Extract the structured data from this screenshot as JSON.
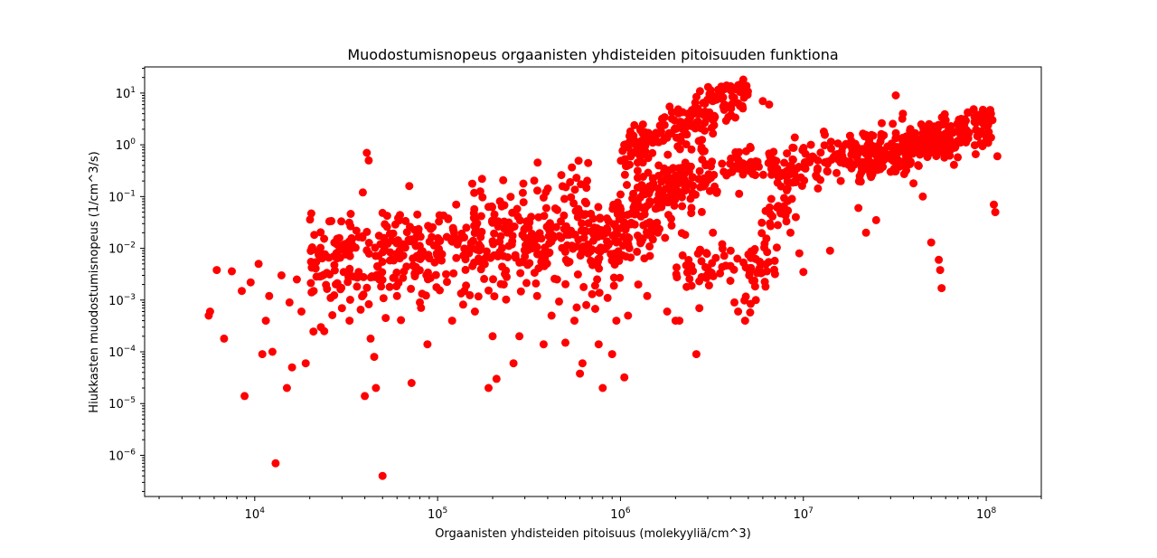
{
  "chart_data": {
    "type": "scatter",
    "title": "Muodostumisnopeus orgaanisten yhdisteiden pitoisuuden funktiona",
    "xlabel": "Orgaanisten yhdisteiden pitoisuus (molekyyliä/cm^3)",
    "ylabel": "Hiukkasten muodostumisnopeus (1/cm^3/s)",
    "xscale": "log",
    "yscale": "log",
    "xlim": [
      2500,
      200000000
    ],
    "ylim": [
      1.6e-07,
      32
    ],
    "xticks": [
      {
        "value": 10000,
        "base": "10",
        "exp": "4"
      },
      {
        "value": 100000,
        "base": "10",
        "exp": "5"
      },
      {
        "value": 1000000,
        "base": "10",
        "exp": "6"
      },
      {
        "value": 10000000,
        "base": "10",
        "exp": "7"
      },
      {
        "value": 100000000,
        "base": "10",
        "exp": "8"
      }
    ],
    "yticks": [
      {
        "value": 1e-06,
        "base": "10",
        "exp": "−6"
      },
      {
        "value": 1e-05,
        "base": "10",
        "exp": "−5"
      },
      {
        "value": 0.0001,
        "base": "10",
        "exp": "−4"
      },
      {
        "value": 0.001,
        "base": "10",
        "exp": "−3"
      },
      {
        "value": 0.01,
        "base": "10",
        "exp": "−2"
      },
      {
        "value": 0.1,
        "base": "10",
        "exp": "−1"
      },
      {
        "value": 1,
        "base": "10",
        "exp": "0"
      },
      {
        "value": 10,
        "base": "10",
        "exp": "1"
      }
    ],
    "marker_color": "#ff0000",
    "grid": false,
    "legend": "none",
    "points": [
      [
        5600,
        0.0005
      ],
      [
        5700,
        0.0006
      ],
      [
        6200,
        0.0038
      ],
      [
        6800,
        0.00018
      ],
      [
        7500,
        0.0036
      ],
      [
        8500,
        0.0015
      ],
      [
        8800,
        1.4e-05
      ],
      [
        9500,
        0.0022
      ],
      [
        10500,
        0.005
      ],
      [
        11000,
        9e-05
      ],
      [
        11500,
        0.0004
      ],
      [
        12000,
        0.0012
      ],
      [
        12500,
        0.0001
      ],
      [
        13000,
        7e-07
      ],
      [
        14000,
        0.003
      ],
      [
        15000,
        2e-05
      ],
      [
        15500,
        0.0009
      ],
      [
        16000,
        5e-05
      ],
      [
        17000,
        0.0025
      ],
      [
        18000,
        0.0006
      ],
      [
        19000,
        6e-05
      ],
      [
        21000,
        0.0015
      ],
      [
        23000,
        0.0003
      ],
      [
        24000,
        0.00025
      ],
      [
        26000,
        0.0011
      ],
      [
        30000,
        0.0007
      ],
      [
        33000,
        0.0004
      ],
      [
        37000,
        0.0035
      ],
      [
        39000,
        0.12
      ],
      [
        40000,
        1.4e-05
      ],
      [
        41000,
        0.7
      ],
      [
        42000,
        0.5
      ],
      [
        43000,
        0.00018
      ],
      [
        45000,
        8e-05
      ],
      [
        46000,
        2e-05
      ],
      [
        48000,
        0.0025
      ],
      [
        50000,
        4e-07
      ],
      [
        52000,
        0.00045
      ],
      [
        60000,
        0.0012
      ],
      [
        70000,
        0.16
      ],
      [
        72000,
        2.5e-05
      ],
      [
        80000,
        0.0009
      ],
      [
        88000,
        0.00014
      ],
      [
        120000,
        0.0004
      ],
      [
        140000,
        0.0015
      ],
      [
        160000,
        0.0006
      ],
      [
        175000,
        0.22
      ],
      [
        190000,
        2e-05
      ],
      [
        200000,
        0.0002
      ],
      [
        210000,
        3e-05
      ],
      [
        230000,
        0.002
      ],
      [
        260000,
        6e-05
      ],
      [
        280000,
        0.0002
      ],
      [
        300000,
        0.007
      ],
      [
        350000,
        0.0012
      ],
      [
        380000,
        0.00014
      ],
      [
        420000,
        0.0005
      ],
      [
        450000,
        0.0025
      ],
      [
        500000,
        0.00015
      ],
      [
        560000,
        0.0004
      ],
      [
        600000,
        3.8e-05
      ],
      [
        620000,
        6e-05
      ],
      [
        650000,
        0.0008
      ],
      [
        700000,
        0.0013
      ],
      [
        760000,
        0.00014
      ],
      [
        800000,
        2e-05
      ],
      [
        850000,
        0.0011
      ],
      [
        900000,
        9e-05
      ],
      [
        950000,
        0.0004
      ],
      [
        1000000,
        0.11
      ],
      [
        1050000,
        3.2e-05
      ],
      [
        1100000,
        0.0005
      ],
      [
        1250000,
        0.002
      ],
      [
        1400000,
        0.0012
      ],
      [
        1600000,
        0.02
      ],
      [
        1800000,
        0.0006
      ],
      [
        2000000,
        0.0004
      ],
      [
        2100000,
        0.0004
      ],
      [
        2300000,
        0.0018
      ],
      [
        2600000,
        9e-05
      ],
      [
        2700000,
        0.0007
      ],
      [
        3000000,
        0.004
      ],
      [
        3200000,
        0.02
      ],
      [
        3600000,
        0.012
      ],
      [
        3800000,
        14
      ],
      [
        4000000,
        0.009
      ],
      [
        4200000,
        0.0009
      ],
      [
        4400000,
        0.0006
      ],
      [
        4800000,
        0.0004
      ],
      [
        5500000,
        0.001
      ],
      [
        6000000,
        7
      ],
      [
        6500000,
        6
      ],
      [
        7500000,
        0.05
      ],
      [
        8000000,
        0.25
      ],
      [
        8500000,
        0.02
      ],
      [
        9500000,
        0.008
      ],
      [
        10000000,
        0.0035
      ],
      [
        11000000,
        1.0
      ],
      [
        12000000,
        0.5
      ],
      [
        14000000,
        0.009
      ],
      [
        16000000,
        0.2
      ],
      [
        18000000,
        1.5
      ],
      [
        20000000,
        0.06
      ],
      [
        22000000,
        0.02
      ],
      [
        25000000,
        0.035
      ],
      [
        30000000,
        0.3
      ],
      [
        32000000,
        9
      ],
      [
        35000000,
        4
      ],
      [
        40000000,
        0.18
      ],
      [
        45000000,
        0.1
      ],
      [
        50000000,
        0.013
      ],
      [
        55000000,
        0.006
      ],
      [
        56000000,
        0.0038
      ],
      [
        57000000,
        0.0017
      ],
      [
        60000000,
        3
      ],
      [
        70000000,
        1.2
      ],
      [
        80000000,
        4.2
      ],
      [
        90000000,
        3.8
      ],
      [
        100000000,
        1.2
      ],
      [
        110000000,
        0.07
      ],
      [
        112000000,
        0.05
      ],
      [
        115000000,
        0.6
      ]
    ],
    "bands": [
      {
        "x": [
          20000,
          1500000
        ],
        "y": [
          0.012,
          0.028
        ],
        "n": 220,
        "spread": 0.28
      },
      {
        "x": [
          20000,
          1200000
        ],
        "y": [
          0.004,
          0.02
        ],
        "n": 160,
        "spread": 0.35
      },
      {
        "x": [
          20000,
          700000
        ],
        "y": [
          0.002,
          0.006
        ],
        "n": 120,
        "spread": 0.35
      },
      {
        "x": [
          1200000,
          60000000
        ],
        "y": [
          0.12,
          1.5
        ],
        "n": 320,
        "spread": 0.2
      },
      {
        "x": [
          20000000,
          110000000
        ],
        "y": [
          0.3,
          3
        ],
        "n": 200,
        "spread": 0.2
      },
      {
        "x": [
          1000000,
          5000000
        ],
        "y": [
          0.6,
          10
        ],
        "n": 180,
        "spread": 0.22
      },
      {
        "x": [
          700000,
          3000000
        ],
        "y": [
          0.005,
          0.5
        ],
        "n": 140,
        "spread": 0.4
      },
      {
        "x": [
          2000000,
          7000000
        ],
        "y": [
          0.004,
          0.003
        ],
        "n": 60,
        "spread": 0.2
      },
      {
        "x": [
          5000000,
          10000000
        ],
        "y": [
          0.005,
          0.3
        ],
        "n": 50,
        "spread": 0.3
      },
      {
        "x": [
          150000,
          700000
        ],
        "y": [
          0.05,
          0.25
        ],
        "n": 50,
        "spread": 0.3
      }
    ]
  }
}
